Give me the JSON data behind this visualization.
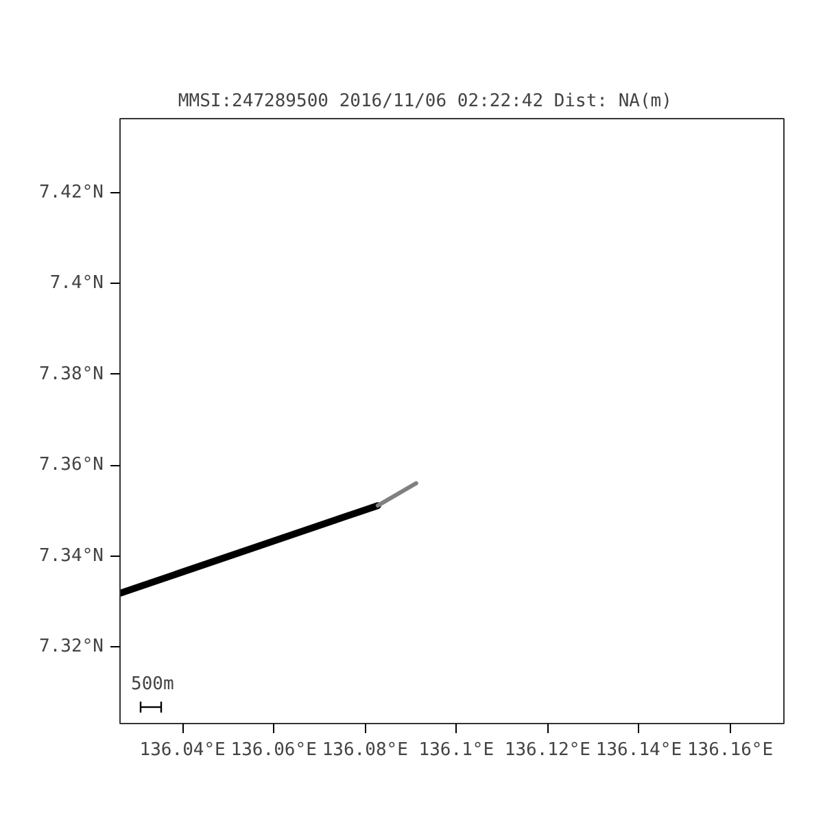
{
  "chart_data": {
    "type": "line",
    "title": "MMSI:247289500  2016/11/06 02:22:42  Dist:    NA(m)",
    "series": [
      {
        "color": "#000000",
        "x": [
          136.0263,
          136.0828
        ],
        "values": [
          7.3318,
          7.3511
        ]
      },
      {
        "color": "#808080",
        "x": [
          136.0828,
          136.0912
        ],
        "values": [
          7.3511,
          7.356
        ]
      }
    ],
    "xlim": [
      136.0263,
      136.1718
    ],
    "ylim": [
      7.3031,
      7.4363
    ],
    "xticks": [
      {
        "value": 136.04,
        "label": "136.04°E"
      },
      {
        "value": 136.06,
        "label": "136.06°E"
      },
      {
        "value": 136.08,
        "label": "136.08°E"
      },
      {
        "value": 136.1,
        "label": "136.1°E"
      },
      {
        "value": 136.12,
        "label": "136.12°E"
      },
      {
        "value": 136.14,
        "label": "136.14°E"
      },
      {
        "value": 136.16,
        "label": "136.16°E"
      }
    ],
    "yticks": [
      {
        "value": 7.32,
        "label": "7.32°N"
      },
      {
        "value": 7.34,
        "label": "7.34°N"
      },
      {
        "value": 7.36,
        "label": "7.36°N"
      },
      {
        "value": 7.38,
        "label": "7.38°N"
      },
      {
        "value": 7.4,
        "label": "7.4°N"
      },
      {
        "value": 7.42,
        "label": "7.42°N"
      }
    ],
    "annotations": [
      "500m"
    ],
    "grid": false,
    "marker": "none",
    "line_style": "solid"
  }
}
